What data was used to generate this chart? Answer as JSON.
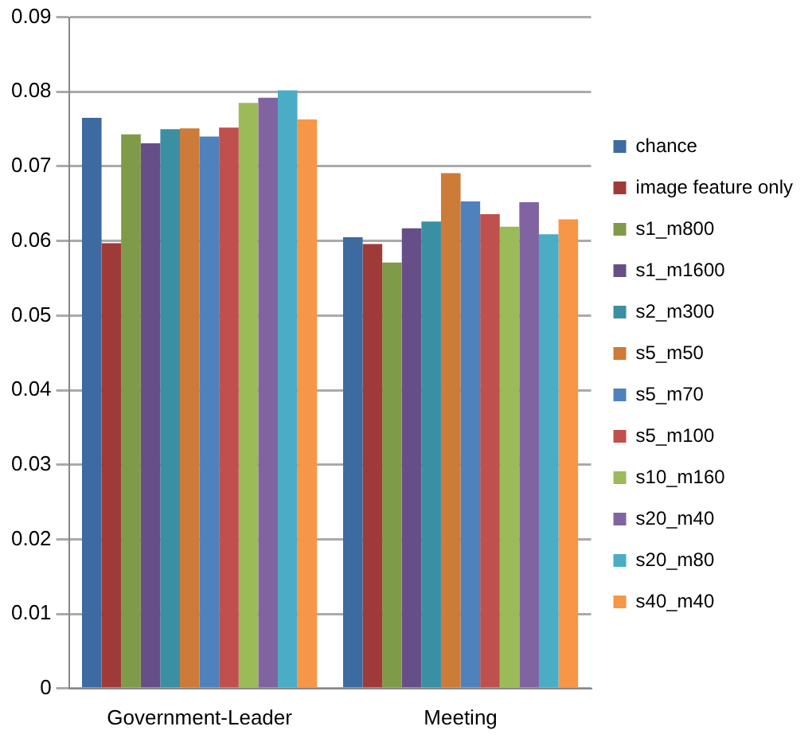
{
  "chart_data": {
    "type": "bar",
    "categories": [
      "Government-Leader",
      "Meeting"
    ],
    "series": [
      {
        "name": "chance",
        "color": "#3d6aa1",
        "values": [
          0.0765,
          0.0605
        ]
      },
      {
        "name": "image feature only",
        "color": "#9e3b38",
        "values": [
          0.0597,
          0.0596
        ]
      },
      {
        "name": "s1_m800",
        "color": "#7f9a48",
        "values": [
          0.0743,
          0.0571
        ]
      },
      {
        "name": "s1_m1600",
        "color": "#664f88",
        "values": [
          0.0731,
          0.0617
        ]
      },
      {
        "name": "s2_m300",
        "color": "#3b8fa3",
        "values": [
          0.075,
          0.0626
        ]
      },
      {
        "name": "s5_m50",
        "color": "#cc7b38",
        "values": [
          0.0751,
          0.0691
        ]
      },
      {
        "name": "s5_m70",
        "color": "#4f81bd",
        "values": [
          0.074,
          0.0653
        ]
      },
      {
        "name": "s5_m100",
        "color": "#c0504d",
        "values": [
          0.0752,
          0.0636
        ]
      },
      {
        "name": "s10_m160",
        "color": "#9bbb59",
        "values": [
          0.0785,
          0.0619
        ]
      },
      {
        "name": "s20_m40",
        "color": "#8064a2",
        "values": [
          0.0792,
          0.0652
        ]
      },
      {
        "name": "s20_m80",
        "color": "#4bacc6",
        "values": [
          0.0802,
          0.0609
        ]
      },
      {
        "name": "s40_m40",
        "color": "#f79646",
        "values": [
          0.0763,
          0.0629
        ]
      }
    ],
    "ylim": [
      0,
      0.09
    ],
    "yticks": [
      0,
      0.01,
      0.02,
      0.03,
      0.04,
      0.05,
      0.06,
      0.07,
      0.08,
      0.09
    ],
    "grid": "y",
    "legend": "right"
  }
}
